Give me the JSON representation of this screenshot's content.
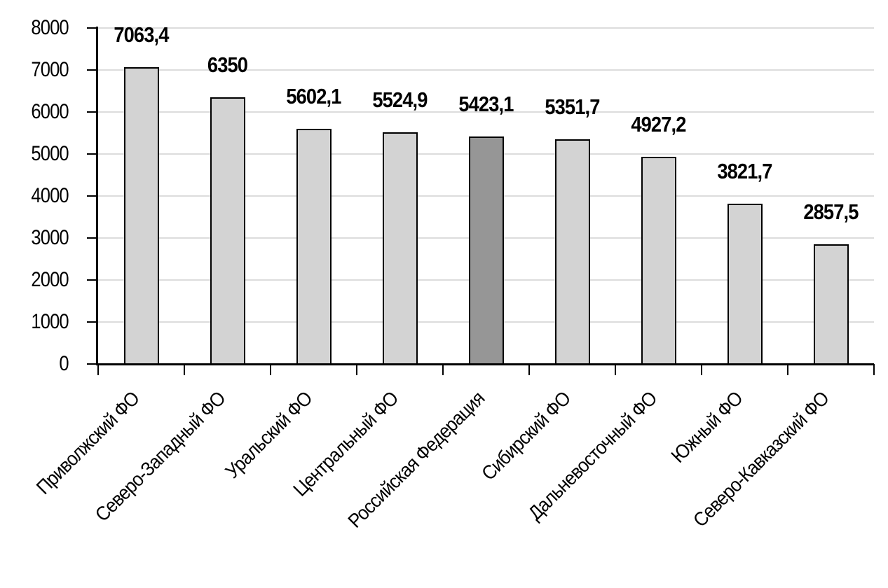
{
  "chart_data": {
    "type": "bar",
    "title": "",
    "xlabel": "",
    "ylabel": "",
    "categories": [
      "Приволжский ФО",
      "Северо-Западный ФО",
      "Уральский ФО",
      "Центральный ФО",
      "Российская Федерация",
      "Сибирский ФО",
      "Дальневосточный ФО",
      "Южный ФО",
      "Северо-Кавказский ФО"
    ],
    "values": [
      7063.4,
      6350,
      5602.1,
      5524.9,
      5423.1,
      5351.7,
      4927.2,
      3821.7,
      2857.5
    ],
    "value_labels": [
      "7063,4",
      "6350",
      "5602,1",
      "5524,9",
      "5423,1",
      "5351,7",
      "4927,2",
      "3821,7",
      "2857,5"
    ],
    "highlighted_category": "Российская Федерация",
    "highlight_index": 4,
    "ylim": [
      0,
      8000
    ],
    "ytick_step": 1000,
    "ytick_labels": [
      "0",
      "1000",
      "2000",
      "3000",
      "4000",
      "5000",
      "6000",
      "7000",
      "8000"
    ],
    "grid": true,
    "legend_position": "none",
    "colors": {
      "bar_fill": "#d3d3d3",
      "bar_fill_highlight": "#969696",
      "bar_border": "#000000",
      "gridline": "#dcdcdc",
      "axis": "#000000",
      "text": "#000000",
      "background": "#ffffff"
    }
  }
}
